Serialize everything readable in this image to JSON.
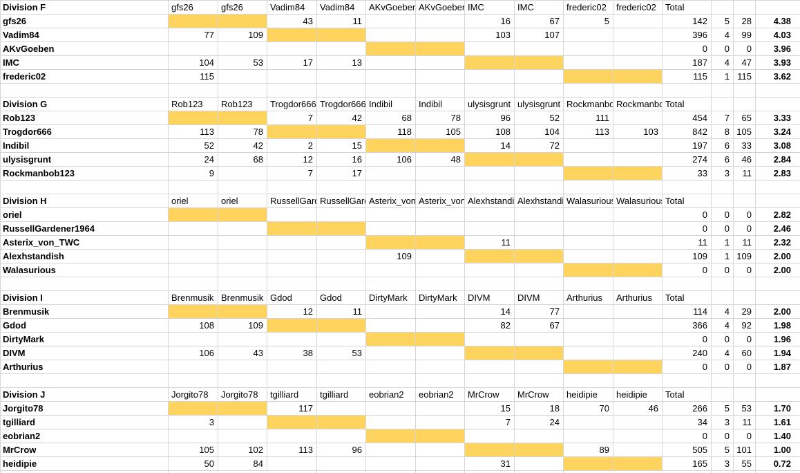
{
  "sheet": {
    "total_label": "Total",
    "divisions": [
      {
        "name": "Division F",
        "players": [
          "gfs26",
          "Vadim84",
          "AKvGoeben",
          "IMC",
          "frederic02"
        ],
        "rows": [
          {
            "player": "gfs26",
            "scores": [
              "",
              "",
              "43",
              "11",
              "",
              "",
              "16",
              "67",
              "5",
              ""
            ],
            "summary": [
              "142",
              "5",
              "28"
            ],
            "rating": "4.38"
          },
          {
            "player": "Vadim84",
            "scores": [
              "77",
              "109",
              "",
              "",
              "",
              "",
              "103",
              "107",
              "",
              ""
            ],
            "summary": [
              "396",
              "4",
              "99"
            ],
            "rating": "4.03"
          },
          {
            "player": "AKvGoeben",
            "scores": [
              "",
              "",
              "",
              "",
              "",
              "",
              "",
              "",
              "",
              ""
            ],
            "summary": [
              "0",
              "0",
              "0"
            ],
            "rating": "3.96"
          },
          {
            "player": "IMC",
            "scores": [
              "104",
              "53",
              "17",
              "13",
              "",
              "",
              "",
              "",
              "",
              ""
            ],
            "summary": [
              "187",
              "4",
              "47"
            ],
            "rating": "3.93"
          },
          {
            "player": "frederic02",
            "scores": [
              "115",
              "",
              "",
              "",
              "",
              "",
              "",
              "",
              "",
              ""
            ],
            "summary": [
              "115",
              "1",
              "115"
            ],
            "rating": "3.62"
          }
        ]
      },
      {
        "name": "Division G",
        "players": [
          "Rob123",
          "Trogdor666",
          "Indibil",
          "ulysisgrunt",
          "Rockmanbob123"
        ],
        "rows": [
          {
            "player": "Rob123",
            "scores": [
              "",
              "",
              "7",
              "42",
              "68",
              "78",
              "96",
              "52",
              "111",
              ""
            ],
            "summary": [
              "454",
              "7",
              "65"
            ],
            "rating": "3.33"
          },
          {
            "player": "Trogdor666",
            "scores": [
              "113",
              "78",
              "",
              "",
              "118",
              "105",
              "108",
              "104",
              "113",
              "103"
            ],
            "summary": [
              "842",
              "8",
              "105"
            ],
            "rating": "3.24"
          },
          {
            "player": "Indibil",
            "scores": [
              "52",
              "42",
              "2",
              "15",
              "",
              "",
              "14",
              "72",
              "",
              ""
            ],
            "summary": [
              "197",
              "6",
              "33"
            ],
            "rating": "3.08"
          },
          {
            "player": "ulysisgrunt",
            "scores": [
              "24",
              "68",
              "12",
              "16",
              "106",
              "48",
              "",
              "",
              "",
              ""
            ],
            "summary": [
              "274",
              "6",
              "46"
            ],
            "rating": "2.84"
          },
          {
            "player": "Rockmanbob123",
            "scores": [
              "9",
              "",
              "7",
              "17",
              "",
              "",
              "",
              "",
              "",
              ""
            ],
            "summary": [
              "33",
              "3",
              "11"
            ],
            "rating": "2.83"
          }
        ]
      },
      {
        "name": "Division H",
        "players": [
          "oriel",
          "RussellGardener1964",
          "Asterix_von_TWC",
          "Alexhstandish",
          "Walasurious"
        ],
        "rows": [
          {
            "player": "oriel",
            "scores": [
              "",
              "",
              "",
              "",
              "",
              "",
              "",
              "",
              "",
              ""
            ],
            "summary": [
              "0",
              "0",
              "0"
            ],
            "rating": "2.82"
          },
          {
            "player": "RussellGardener1964",
            "scores": [
              "",
              "",
              "",
              "",
              "",
              "",
              "",
              "",
              "",
              ""
            ],
            "summary": [
              "0",
              "0",
              "0"
            ],
            "rating": "2.46"
          },
          {
            "player": "Asterix_von_TWC",
            "scores": [
              "",
              "",
              "",
              "",
              "",
              "",
              "11",
              "",
              "",
              ""
            ],
            "summary": [
              "11",
              "1",
              "11"
            ],
            "rating": "2.32"
          },
          {
            "player": "Alexhstandish",
            "scores": [
              "",
              "",
              "",
              "",
              "109",
              "",
              "",
              "",
              "",
              ""
            ],
            "summary": [
              "109",
              "1",
              "109"
            ],
            "rating": "2.00"
          },
          {
            "player": "Walasurious",
            "scores": [
              "",
              "",
              "",
              "",
              "",
              "",
              "",
              "",
              "",
              ""
            ],
            "summary": [
              "0",
              "0",
              "0"
            ],
            "rating": "2.00"
          }
        ]
      },
      {
        "name": "Division I",
        "players": [
          "Brenmusik",
          "Gdod",
          "DirtyMark",
          "DIVM",
          "Arthurius"
        ],
        "rows": [
          {
            "player": "Brenmusik",
            "scores": [
              "",
              "",
              "12",
              "11",
              "",
              "",
              "14",
              "77",
              "",
              ""
            ],
            "summary": [
              "114",
              "4",
              "29"
            ],
            "rating": "2.00"
          },
          {
            "player": "Gdod",
            "scores": [
              "108",
              "109",
              "",
              "",
              "",
              "",
              "82",
              "67",
              "",
              ""
            ],
            "summary": [
              "366",
              "4",
              "92"
            ],
            "rating": "1.98"
          },
          {
            "player": "DirtyMark",
            "scores": [
              "",
              "",
              "",
              "",
              "",
              "",
              "",
              "",
              "",
              ""
            ],
            "summary": [
              "0",
              "0",
              "0"
            ],
            "rating": "1.96"
          },
          {
            "player": "DIVM",
            "scores": [
              "106",
              "43",
              "38",
              "53",
              "",
              "",
              "",
              "",
              "",
              ""
            ],
            "summary": [
              "240",
              "4",
              "60"
            ],
            "rating": "1.94"
          },
          {
            "player": "Arthurius",
            "scores": [
              "",
              "",
              "",
              "",
              "",
              "",
              "",
              "",
              "",
              ""
            ],
            "summary": [
              "0",
              "0",
              "0"
            ],
            "rating": "1.87"
          }
        ]
      },
      {
        "name": "Division J",
        "players": [
          "Jorgito78",
          "tgilliard",
          "eobrian2",
          "MrCrow",
          "heidipie"
        ],
        "rows": [
          {
            "player": "Jorgito78",
            "scores": [
              "",
              "",
              "117",
              "",
              "",
              "",
              "15",
              "18",
              "70",
              "46"
            ],
            "summary": [
              "266",
              "5",
              "53"
            ],
            "rating": "1.70"
          },
          {
            "player": "tgilliard",
            "scores": [
              "3",
              "",
              "",
              "",
              "",
              "",
              "7",
              "24",
              "",
              ""
            ],
            "summary": [
              "34",
              "3",
              "11"
            ],
            "rating": "1.61"
          },
          {
            "player": "eobrian2",
            "scores": [
              "",
              "",
              "",
              "",
              "",
              "",
              "",
              "",
              "",
              ""
            ],
            "summary": [
              "0",
              "0",
              "0"
            ],
            "rating": "1.40"
          },
          {
            "player": "MrCrow",
            "scores": [
              "105",
              "102",
              "113",
              "96",
              "",
              "",
              "",
              "",
              "89",
              ""
            ],
            "summary": [
              "505",
              "5",
              "101"
            ],
            "rating": "1.00"
          },
          {
            "player": "heidipie",
            "scores": [
              "50",
              "84",
              "",
              "",
              "",
              "",
              "31",
              "",
              "",
              ""
            ],
            "summary": [
              "165",
              "3",
              "55"
            ],
            "rating": "0.72"
          }
        ]
      }
    ]
  },
  "colors": {
    "highlight": "#FFD45E",
    "gridline": "#D6D6D6",
    "text": "#000000",
    "background": "#FFFFFF"
  }
}
